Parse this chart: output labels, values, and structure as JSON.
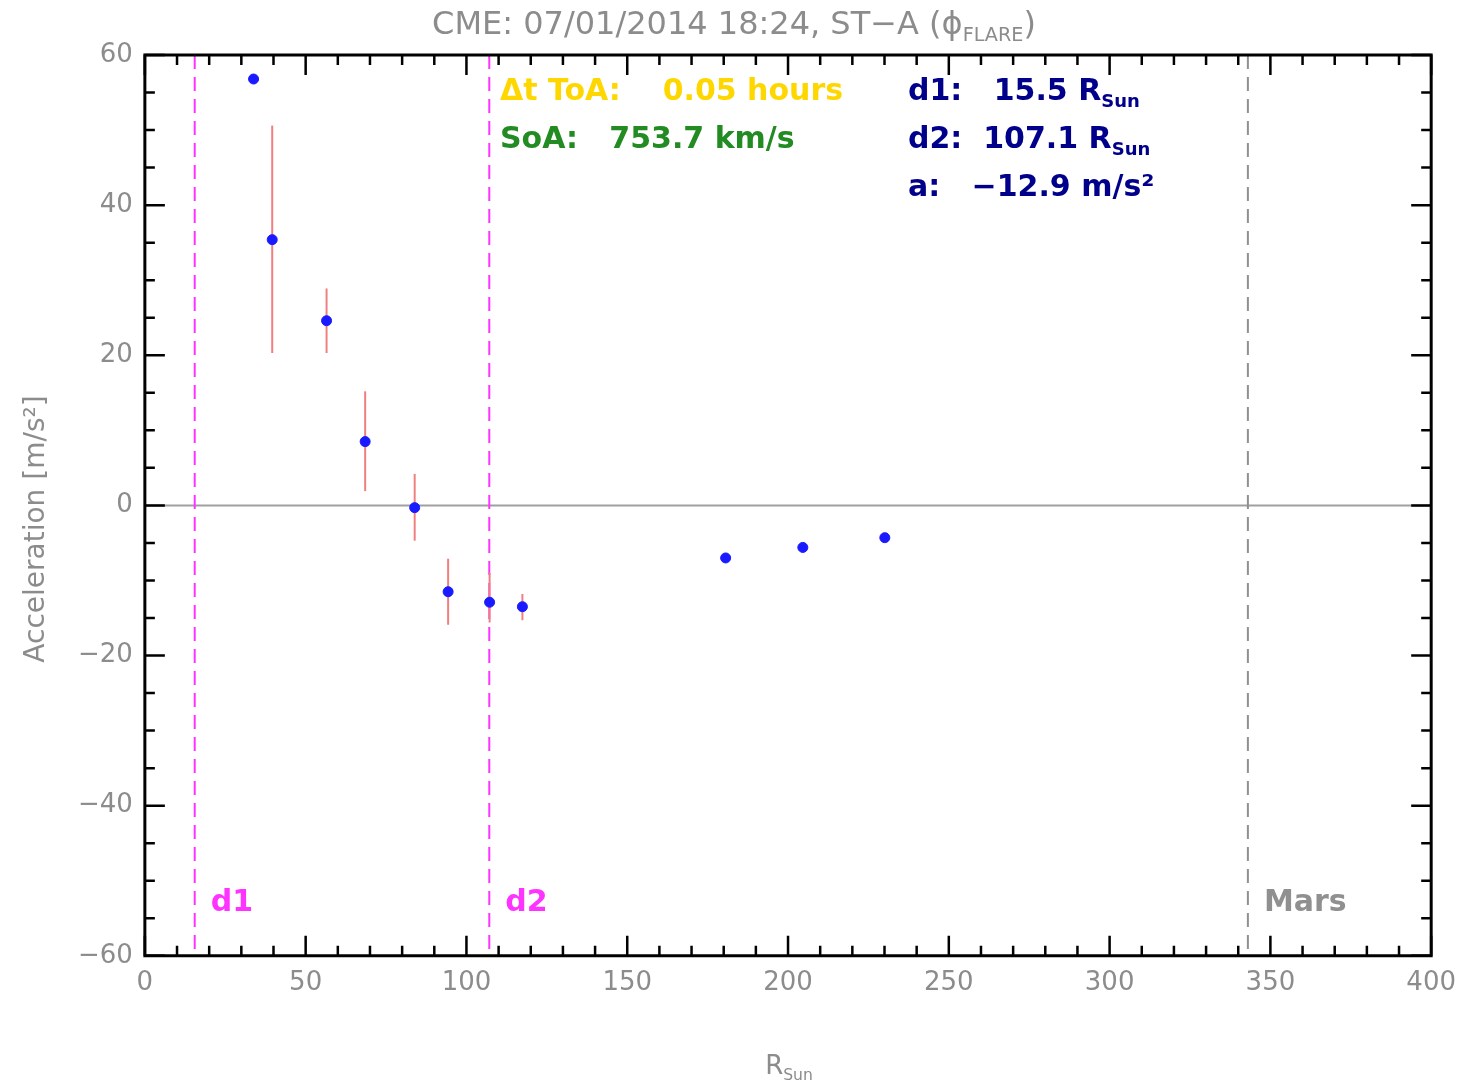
{
  "chart_data": {
    "type": "scatter",
    "title": "CME: 07/01/2014 18:24, ST−A (ϕ$_{FLARE}$)",
    "xlabel": "R$_{Sun}$",
    "ylabel": "Acceleration [m/s²]",
    "x": [
      33.8,
      39.6,
      56.5,
      68.5,
      83.9,
      94.3,
      107.2,
      117.4,
      180.6,
      204.6,
      230.1
    ],
    "series": [
      {
        "color": "#1a1aff",
        "values": [
          56.8,
          35.4,
          24.6,
          8.5,
          -0.3,
          -11.5,
          -12.9,
          -13.5,
          -7.0,
          -5.6,
          -4.3
        ],
        "errors": [
          null,
          [
            20.3,
            50.6
          ],
          [
            20.3,
            28.9
          ],
          [
            1.9,
            15.2
          ],
          [
            -4.7,
            4.2
          ],
          [
            -15.9,
            -7.1
          ],
          [
            -15.6,
            -9.0
          ],
          [
            -15.3,
            -11.8
          ],
          null,
          null,
          null
        ]
      }
    ],
    "marker": "circle",
    "grid": false,
    "legend": false,
    "xlim": [
      0,
      400
    ],
    "ylim": [
      -60,
      60
    ],
    "xticks": [
      0,
      {
        "value": 10,
        "label": null
      },
      {
        "value": 20,
        "label": null
      },
      {
        "value": 30,
        "label": null
      },
      {
        "value": 40,
        "label": null
      },
      50,
      {
        "value": 60,
        "label": null
      },
      {
        "value": 70,
        "label": null
      },
      {
        "value": 80,
        "label": null
      },
      {
        "value": 90,
        "label": null
      },
      100,
      {
        "value": 110,
        "label": null
      },
      {
        "value": 120,
        "label": null
      },
      {
        "value": 130,
        "label": null
      },
      {
        "value": 140,
        "label": null
      },
      150,
      {
        "value": 160,
        "label": null
      },
      {
        "value": 170,
        "label": null
      },
      {
        "value": 180,
        "label": null
      },
      {
        "value": 190,
        "label": null
      },
      200,
      {
        "value": 210,
        "label": null
      },
      {
        "value": 220,
        "label": null
      },
      {
        "value": 230,
        "label": null
      },
      {
        "value": 240,
        "label": null
      },
      250,
      {
        "value": 260,
        "label": null
      },
      {
        "value": 270,
        "label": null
      },
      {
        "value": 280,
        "label": null
      },
      {
        "value": 290,
        "label": null
      },
      300,
      {
        "value": 310,
        "label": null
      },
      {
        "value": 320,
        "label": null
      },
      {
        "value": 330,
        "label": null
      },
      {
        "value": 340,
        "label": null
      },
      350,
      {
        "value": 360,
        "label": null
      },
      {
        "value": 370,
        "label": null
      },
      {
        "value": 380,
        "label": null
      },
      {
        "value": 390,
        "label": null
      },
      400
    ],
    "yticks": [
      {
        "value": -60,
        "label": "−60"
      },
      {
        "value": -55,
        "label": null
      },
      {
        "value": -50,
        "label": null
      },
      {
        "value": -45,
        "label": null
      },
      {
        "value": -40,
        "label": "−40"
      },
      {
        "value": -35,
        "label": null
      },
      {
        "value": -30,
        "label": null
      },
      {
        "value": -25,
        "label": null
      },
      {
        "value": -20,
        "label": "−20"
      },
      {
        "value": -15,
        "label": null
      },
      {
        "value": -10,
        "label": null
      },
      {
        "value": -5,
        "label": null
      },
      0,
      {
        "value": 5,
        "label": null
      },
      {
        "value": 10,
        "label": null
      },
      {
        "value": 15,
        "label": null
      },
      20,
      {
        "value": 25,
        "label": null
      },
      {
        "value": 30,
        "label": null
      },
      {
        "value": 35,
        "label": null
      },
      40,
      {
        "value": 45,
        "label": null
      },
      {
        "value": 50,
        "label": null
      },
      {
        "value": 55,
        "label": null
      },
      60
    ],
    "ref_lines": [
      {
        "axis": "y",
        "value": 0,
        "color": "#a0a0a0",
        "line_style": "solid"
      },
      {
        "axis": "x",
        "value": 15.5,
        "label": "d1",
        "color": "#ff33ff",
        "line_style": "dashed"
      },
      {
        "axis": "x",
        "value": 107.1,
        "label": "d2",
        "color": "#ff33ff",
        "line_style": "dashed"
      },
      {
        "axis": "x",
        "value": 343,
        "label": "Mars",
        "color": "#909090",
        "line_style": "dashed"
      }
    ],
    "annotations": [
      "Δt ToA:    0.05 hours",
      "SoA:   753.7 km/s",
      "d1:   15.5 R$_{Sun}$",
      "d2:  107.1 R$_{Sun}$",
      "a:   −12.9 m/s²"
    ]
  }
}
